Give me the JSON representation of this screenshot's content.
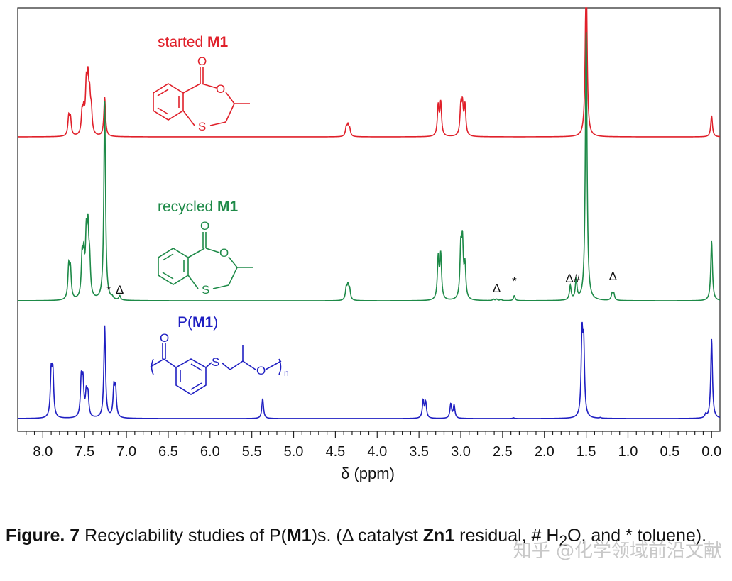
{
  "chart_data": {
    "type": "line",
    "xlabel": "δ (ppm)",
    "xlim": [
      8.3,
      -0.1
    ],
    "x_reversed": true,
    "x_ticks": [
      "8.0",
      "7.5",
      "7.0",
      "6.5",
      "6.0",
      "5.5",
      "5.0",
      "4.5",
      "4.0",
      "3.5",
      "3.0",
      "2.5",
      "2.0",
      "1.5",
      "1.0",
      "0.5",
      "0.0"
    ],
    "x_tick_values": [
      8.0,
      7.5,
      7.0,
      6.5,
      6.0,
      5.5,
      5.0,
      4.5,
      4.0,
      3.5,
      3.0,
      2.5,
      2.0,
      1.5,
      1.0,
      0.5,
      0.0
    ],
    "y_axis_shown": false,
    "grid": false,
    "series": [
      {
        "name_prefix": "started ",
        "name_bold": "M1",
        "color": "#e0202a",
        "peaks": [
          {
            "x": 7.69,
            "h": 0.26
          },
          {
            "x": 7.67,
            "h": 0.24
          },
          {
            "x": 7.53,
            "h": 0.3
          },
          {
            "x": 7.51,
            "h": 0.28
          },
          {
            "x": 7.48,
            "h": 0.62
          },
          {
            "x": 7.46,
            "h": 0.66
          },
          {
            "x": 7.44,
            "h": 0.45
          },
          {
            "x": 7.42,
            "h": 0.3
          },
          {
            "x": 7.26,
            "h": 0.55
          },
          {
            "x": 4.37,
            "h": 0.12
          },
          {
            "x": 4.35,
            "h": 0.14
          },
          {
            "x": 4.33,
            "h": 0.1
          },
          {
            "x": 3.27,
            "h": 0.42
          },
          {
            "x": 3.24,
            "h": 0.46
          },
          {
            "x": 3.0,
            "h": 0.38
          },
          {
            "x": 2.98,
            "h": 0.4
          },
          {
            "x": 2.95,
            "h": 0.42
          },
          {
            "x": 1.5,
            "h": 2.5
          },
          {
            "x": 0.0,
            "h": 0.3
          }
        ]
      },
      {
        "name_prefix": "recycled ",
        "name_bold": "M1",
        "color": "#1e8a48",
        "peaks": [
          {
            "x": 7.69,
            "h": 0.44
          },
          {
            "x": 7.67,
            "h": 0.4
          },
          {
            "x": 7.53,
            "h": 0.55
          },
          {
            "x": 7.51,
            "h": 0.5
          },
          {
            "x": 7.48,
            "h": 0.78
          },
          {
            "x": 7.46,
            "h": 0.85
          },
          {
            "x": 7.44,
            "h": 0.45
          },
          {
            "x": 7.26,
            "h": 2.8
          },
          {
            "x": 7.17,
            "h": 0.03
          },
          {
            "x": 7.08,
            "h": 0.06
          },
          {
            "x": 4.37,
            "h": 0.16
          },
          {
            "x": 4.35,
            "h": 0.18
          },
          {
            "x": 4.33,
            "h": 0.14
          },
          {
            "x": 3.27,
            "h": 0.58
          },
          {
            "x": 3.24,
            "h": 0.62
          },
          {
            "x": 3.0,
            "h": 0.68
          },
          {
            "x": 2.98,
            "h": 0.75
          },
          {
            "x": 2.95,
            "h": 0.45
          },
          {
            "x": 2.61,
            "h": 0.02
          },
          {
            "x": 2.57,
            "h": 0.02
          },
          {
            "x": 2.52,
            "h": 0.02
          },
          {
            "x": 2.36,
            "h": 0.07
          },
          {
            "x": 1.69,
            "h": 0.2
          },
          {
            "x": 1.62,
            "h": 0.28
          },
          {
            "x": 1.5,
            "h": 3.8
          },
          {
            "x": 1.19,
            "h": 0.09
          },
          {
            "x": 1.17,
            "h": 0.09
          },
          {
            "x": 0.0,
            "h": 0.84
          }
        ],
        "annotations": [
          {
            "text": "*",
            "x": 7.21
          },
          {
            "text": "Δ",
            "x": 7.08
          },
          {
            "text": "Δ",
            "x": 2.57
          },
          {
            "text": "*",
            "x": 2.36
          },
          {
            "text": "Δ#",
            "x": 1.66
          },
          {
            "text": "Δ",
            "x": 1.18
          }
        ]
      },
      {
        "name_prefix": "P(",
        "name_bold": "M1",
        "name_suffix": ")",
        "color": "#1f1fc2",
        "peaks": [
          {
            "x": 7.9,
            "h": 0.62
          },
          {
            "x": 7.88,
            "h": 0.6
          },
          {
            "x": 7.54,
            "h": 0.52
          },
          {
            "x": 7.52,
            "h": 0.48
          },
          {
            "x": 7.48,
            "h": 0.32
          },
          {
            "x": 7.46,
            "h": 0.3
          },
          {
            "x": 7.26,
            "h": 1.3
          },
          {
            "x": 7.15,
            "h": 0.4
          },
          {
            "x": 7.13,
            "h": 0.38
          },
          {
            "x": 5.37,
            "h": 0.28
          },
          {
            "x": 3.45,
            "h": 0.24
          },
          {
            "x": 3.42,
            "h": 0.22
          },
          {
            "x": 3.12,
            "h": 0.2
          },
          {
            "x": 3.08,
            "h": 0.18
          },
          {
            "x": 2.37,
            "h": 0.01
          },
          {
            "x": 1.55,
            "h": 1.1
          },
          {
            "x": 1.53,
            "h": 0.95
          },
          {
            "x": 1.33,
            "h": 0.01
          },
          {
            "x": 0.07,
            "h": 0.05
          },
          {
            "x": 0.0,
            "h": 1.12
          }
        ]
      }
    ]
  },
  "structures": {
    "m1_labels": {
      "carbonyl_o": "O",
      "ring_o": "O",
      "sulfur": "S"
    },
    "polymer_labels": {
      "carbonyl_o": "O",
      "sulfur": "S",
      "ether_o": "O",
      "n": "n"
    }
  },
  "caption": {
    "label": "Figure. 7",
    "text_1": " Recyclability studies of P(",
    "bold_1": "M1",
    "text_2": ")s. (Δ catalyst ",
    "bold_2": "Zn1",
    "text_3": " residual, # H",
    "sub": "2",
    "text_4": "O, and * toluene)."
  },
  "watermark": "知乎 @化学领域前沿文献"
}
